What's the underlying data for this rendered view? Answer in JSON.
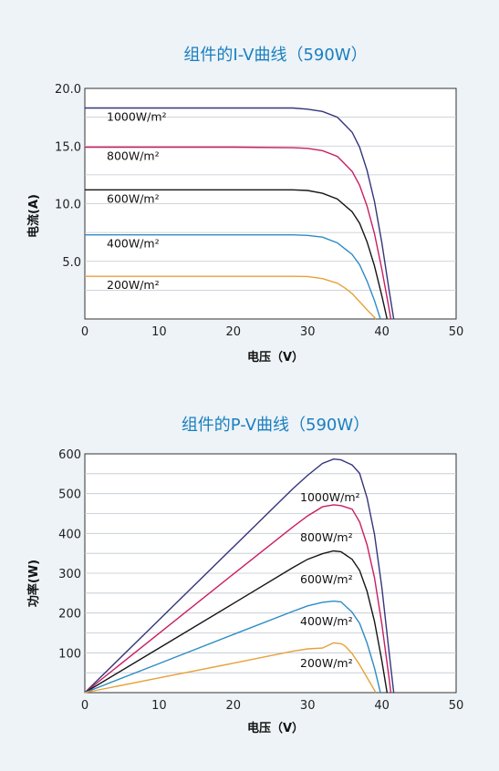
{
  "chart_data": [
    {
      "type": "line",
      "title": "组件的I-V曲线（590W）",
      "xlabel": "电压（V）",
      "ylabel": "电流(A)",
      "xlim": [
        0,
        50
      ],
      "ylim": [
        0,
        20
      ],
      "x_ticks": [
        "0",
        "10",
        "20",
        "30",
        "40",
        "50"
      ],
      "y_ticks": [
        "5.0",
        "10.0",
        "15.0",
        "20.0"
      ],
      "grid": "horizontal",
      "series": [
        {
          "name": "1000W/m²",
          "color": "#34357a",
          "x": [
            0,
            20,
            28,
            30,
            32,
            34,
            36,
            37,
            38,
            39,
            40,
            41,
            41.6
          ],
          "y": [
            18.3,
            18.3,
            18.3,
            18.2,
            18.0,
            17.5,
            16.2,
            14.9,
            12.9,
            10.2,
            6.6,
            2.4,
            0
          ]
        },
        {
          "name": "800W/m²",
          "color": "#c81e63",
          "x": [
            0,
            20,
            28,
            30,
            32,
            34,
            36,
            37,
            38,
            39,
            40,
            41,
            41.2
          ],
          "y": [
            14.9,
            14.9,
            14.85,
            14.8,
            14.6,
            14.1,
            12.8,
            11.6,
            9.8,
            7.4,
            4.3,
            0.8,
            0
          ]
        },
        {
          "name": "600W/m²",
          "color": "#151515",
          "x": [
            0,
            20,
            28,
            30,
            32,
            34,
            36,
            37,
            38,
            39,
            40,
            40.7
          ],
          "y": [
            11.2,
            11.2,
            11.2,
            11.15,
            10.9,
            10.4,
            9.3,
            8.3,
            6.7,
            4.6,
            2.0,
            0
          ]
        },
        {
          "name": "400W/m²",
          "color": "#2d8bc5",
          "x": [
            0,
            20,
            28,
            30,
            32,
            34,
            36,
            37,
            38,
            39,
            39.8
          ],
          "y": [
            7.3,
            7.3,
            7.3,
            7.25,
            7.1,
            6.6,
            5.6,
            4.7,
            3.3,
            1.6,
            0
          ]
        },
        {
          "name": "200W/m²",
          "color": "#e8a13a",
          "x": [
            0,
            20,
            28,
            30,
            32,
            34,
            35,
            36,
            37,
            38,
            39.2
          ],
          "y": [
            3.7,
            3.7,
            3.7,
            3.68,
            3.5,
            3.1,
            2.7,
            2.2,
            1.5,
            0.8,
            0
          ]
        }
      ]
    },
    {
      "type": "line",
      "title": "组件的P-V曲线（590W）",
      "xlabel": "电压（V）",
      "ylabel": "功率(W)",
      "xlim": [
        0,
        50
      ],
      "ylim": [
        0,
        600
      ],
      "x_ticks": [
        "0",
        "10",
        "20",
        "30",
        "40",
        "50"
      ],
      "y_ticks": [
        "100",
        "200",
        "300",
        "400",
        "500",
        "600"
      ],
      "grid": "horizontal",
      "series": [
        {
          "name": "1000W/m²",
          "color": "#34357a",
          "x": [
            0,
            10,
            20,
            28,
            30,
            32,
            33.5,
            34.5,
            36,
            37,
            38,
            39,
            40,
            41,
            41.6
          ],
          "y": [
            0,
            183,
            366,
            512,
            546,
            576,
            587,
            585,
            572,
            551,
            490,
            398,
            264,
            98,
            0
          ]
        },
        {
          "name": "800W/m²",
          "color": "#c81e63",
          "x": [
            0,
            10,
            20,
            28,
            30,
            32,
            33.5,
            34.5,
            36,
            37,
            38,
            39,
            40,
            41,
            41.2
          ],
          "y": [
            0,
            149,
            298,
            416,
            444,
            467,
            472,
            470,
            461,
            429,
            372,
            289,
            172,
            33,
            0
          ]
        },
        {
          "name": "600W/m²",
          "color": "#151515",
          "x": [
            0,
            10,
            20,
            28,
            30,
            32,
            33.5,
            34.5,
            36,
            37,
            38,
            39,
            40,
            40.7
          ],
          "y": [
            0,
            112,
            224,
            314,
            335,
            349,
            356,
            354,
            335,
            307,
            255,
            179,
            80,
            0
          ]
        },
        {
          "name": "400W/m²",
          "color": "#2d8bc5",
          "x": [
            0,
            10,
            20,
            28,
            30,
            32,
            33.5,
            34.5,
            36,
            37,
            38,
            39,
            39.8
          ],
          "y": [
            0,
            73,
            146,
            204,
            218,
            227,
            230,
            228,
            202,
            174,
            125,
            62,
            0
          ]
        },
        {
          "name": "200W/m²",
          "color": "#e8a13a",
          "x": [
            0,
            10,
            20,
            28,
            30,
            32,
            33.5,
            34.5,
            35,
            36,
            37,
            38,
            39.2
          ],
          "y": [
            0,
            37,
            74,
            104,
            110,
            112,
            125,
            123,
            118,
            98,
            70,
            38,
            0
          ]
        }
      ]
    }
  ]
}
